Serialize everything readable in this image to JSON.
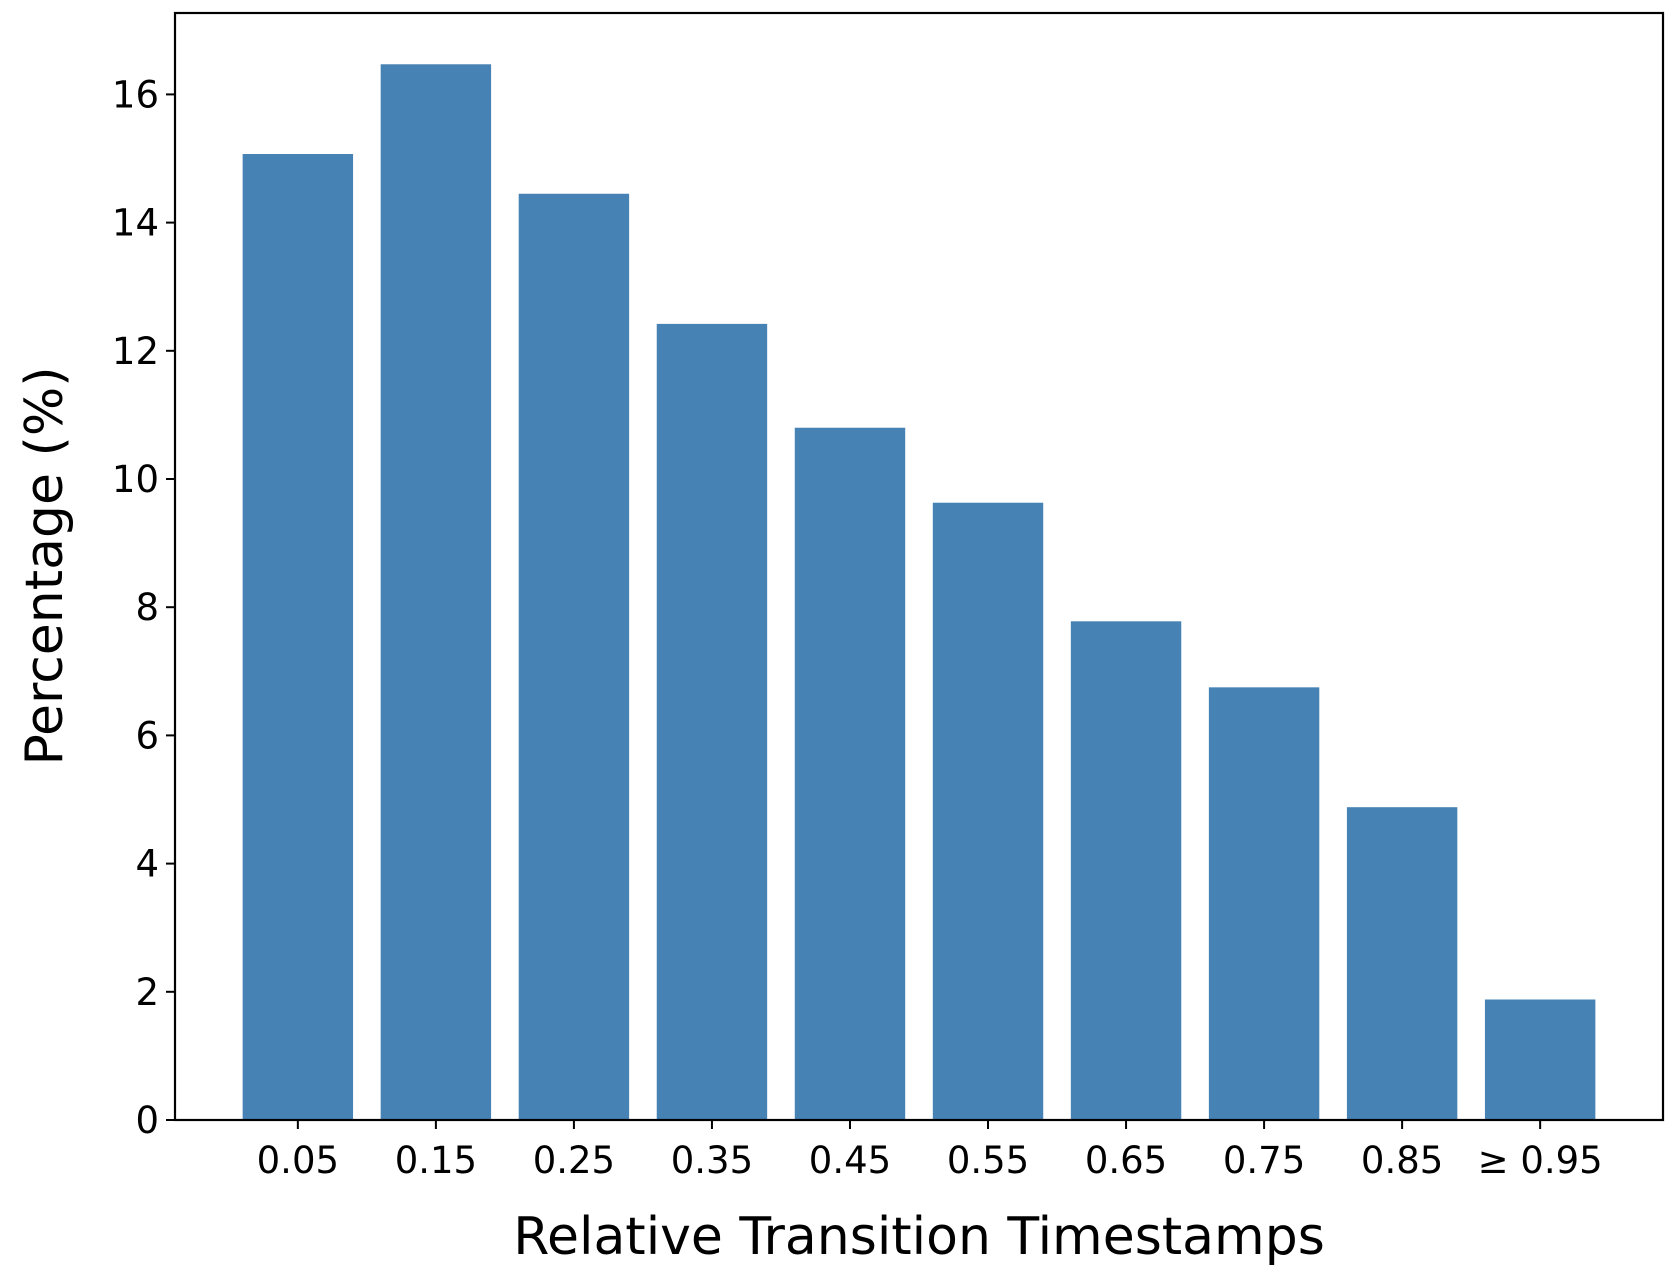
{
  "chart_data": {
    "type": "bar",
    "x_label": "Relative Transition Timestamps",
    "y_label": "Percentage (%)",
    "categories": [
      "0.05",
      "0.15",
      "0.25",
      "0.35",
      "0.45",
      "0.55",
      "0.65",
      "0.75",
      "0.85",
      "≥ 0.95"
    ],
    "values": [
      15.07,
      16.47,
      14.45,
      12.42,
      10.8,
      9.63,
      7.78,
      6.75,
      4.88,
      1.88
    ],
    "color": "#4682b4",
    "ylim": [
      0,
      17.27
    ],
    "yticks": [
      0,
      2,
      4,
      6,
      8,
      10,
      12,
      14,
      16
    ],
    "grid": false
  }
}
